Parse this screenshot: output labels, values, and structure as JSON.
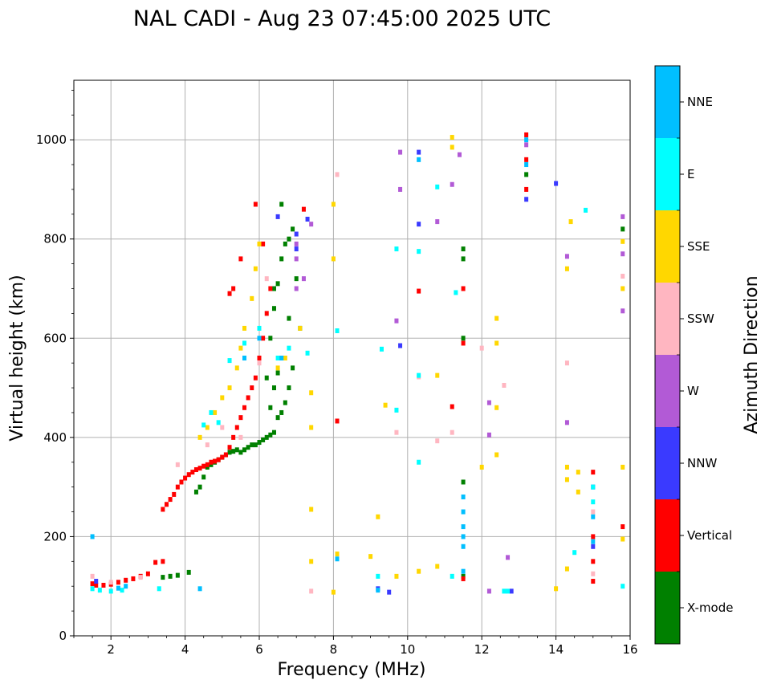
{
  "chart_data": {
    "type": "scatter",
    "title": "NAL CADI - Aug 23 07:45:00 2025 UTC",
    "xlabel": "Frequency (MHz)",
    "ylabel": "Virtual height (km)",
    "xlim": [
      1,
      16
    ],
    "ylim": [
      0,
      1120
    ],
    "xticks": [
      2,
      4,
      6,
      8,
      10,
      12,
      14,
      16
    ],
    "yticks": [
      0,
      200,
      400,
      600,
      800,
      1000
    ],
    "grid": true,
    "colorbar": {
      "label": "Azimuth Direction",
      "categories": [
        {
          "name": "X-mode",
          "color": "#008000"
        },
        {
          "name": "Vertical",
          "color": "#ff0000"
        },
        {
          "name": "NNW",
          "color": "#3a3aff"
        },
        {
          "name": "W",
          "color": "#b25ad6"
        },
        {
          "name": "SSW",
          "color": "#ffb6c1"
        },
        {
          "name": "SSE",
          "color": "#ffd700"
        },
        {
          "name": "E",
          "color": "#00ffff"
        },
        {
          "name": "NNE",
          "color": "#00bfff"
        }
      ]
    },
    "series": [
      {
        "name": "X-mode",
        "points": [
          [
            3.4,
            118
          ],
          [
            3.6,
            120
          ],
          [
            3.8,
            122
          ],
          [
            4.1,
            128
          ],
          [
            4.3,
            290
          ],
          [
            4.4,
            300
          ],
          [
            4.5,
            320
          ],
          [
            4.6,
            340
          ],
          [
            4.7,
            345
          ],
          [
            4.8,
            350
          ],
          [
            4.9,
            355
          ],
          [
            5.0,
            360
          ],
          [
            5.1,
            365
          ],
          [
            5.2,
            370
          ],
          [
            5.3,
            372
          ],
          [
            5.4,
            375
          ],
          [
            5.5,
            370
          ],
          [
            5.6,
            375
          ],
          [
            5.7,
            380
          ],
          [
            5.8,
            385
          ],
          [
            5.9,
            385
          ],
          [
            6.0,
            390
          ],
          [
            6.1,
            395
          ],
          [
            6.2,
            400
          ],
          [
            6.3,
            405
          ],
          [
            6.4,
            410
          ],
          [
            6.5,
            440
          ],
          [
            6.6,
            450
          ],
          [
            6.7,
            470
          ],
          [
            6.8,
            500
          ],
          [
            6.9,
            540
          ],
          [
            6.3,
            460
          ],
          [
            6.4,
            500
          ],
          [
            6.5,
            530
          ],
          [
            6.6,
            560
          ],
          [
            6.2,
            520
          ],
          [
            6.3,
            600
          ],
          [
            6.4,
            700
          ],
          [
            6.5,
            710
          ],
          [
            6.6,
            760
          ],
          [
            6.7,
            790
          ],
          [
            6.8,
            800
          ],
          [
            6.9,
            820
          ],
          [
            7.0,
            720
          ],
          [
            6.4,
            660
          ],
          [
            6.8,
            640
          ],
          [
            7.1,
            620
          ],
          [
            11.5,
            120
          ],
          [
            11.5,
            310
          ],
          [
            11.5,
            600
          ],
          [
            11.5,
            760
          ],
          [
            11.5,
            780
          ],
          [
            13.2,
            930
          ],
          [
            15.8,
            820
          ],
          [
            6.6,
            870
          ]
        ]
      },
      {
        "name": "Vertical",
        "points": [
          [
            1.5,
            105
          ],
          [
            1.6,
            102
          ],
          [
            1.8,
            102
          ],
          [
            2.0,
            104
          ],
          [
            2.2,
            108
          ],
          [
            2.4,
            112
          ],
          [
            2.6,
            115
          ],
          [
            2.8,
            120
          ],
          [
            3.0,
            125
          ],
          [
            3.2,
            148
          ],
          [
            3.4,
            150
          ],
          [
            3.4,
            255
          ],
          [
            3.5,
            265
          ],
          [
            3.6,
            275
          ],
          [
            3.7,
            285
          ],
          [
            3.8,
            300
          ],
          [
            3.9,
            310
          ],
          [
            4.0,
            318
          ],
          [
            4.1,
            325
          ],
          [
            4.2,
            330
          ],
          [
            4.3,
            335
          ],
          [
            4.4,
            338
          ],
          [
            4.5,
            342
          ],
          [
            4.6,
            345
          ],
          [
            4.7,
            350
          ],
          [
            4.8,
            352
          ],
          [
            4.9,
            355
          ],
          [
            5.0,
            360
          ],
          [
            5.1,
            365
          ],
          [
            5.2,
            380
          ],
          [
            5.3,
            400
          ],
          [
            5.4,
            420
          ],
          [
            5.5,
            440
          ],
          [
            5.6,
            460
          ],
          [
            5.7,
            480
          ],
          [
            5.8,
            500
          ],
          [
            5.9,
            520
          ],
          [
            6.0,
            560
          ],
          [
            6.1,
            600
          ],
          [
            6.2,
            650
          ],
          [
            6.3,
            700
          ],
          [
            6.1,
            790
          ],
          [
            5.9,
            870
          ],
          [
            5.5,
            760
          ],
          [
            5.3,
            700
          ],
          [
            5.2,
            690
          ],
          [
            7.2,
            860
          ],
          [
            11.5,
            115
          ],
          [
            11.5,
            590
          ],
          [
            11.5,
            700
          ],
          [
            13.2,
            1010
          ],
          [
            13.2,
            960
          ],
          [
            13.2,
            900
          ],
          [
            15.0,
            330
          ],
          [
            15.0,
            200
          ],
          [
            15.0,
            150
          ],
          [
            15.0,
            110
          ],
          [
            15.8,
            220
          ],
          [
            10.3,
            695
          ],
          [
            11.2,
            462
          ],
          [
            8.1,
            433
          ]
        ]
      },
      {
        "name": "NNW",
        "points": [
          [
            1.6,
            110
          ],
          [
            9.2,
            95
          ],
          [
            9.5,
            88
          ],
          [
            10.3,
            975
          ],
          [
            10.3,
            830
          ],
          [
            12.8,
            90
          ],
          [
            14.0,
            912
          ],
          [
            15.0,
            180
          ],
          [
            7.0,
            810
          ],
          [
            7.0,
            780
          ],
          [
            6.5,
            845
          ],
          [
            7.3,
            840
          ],
          [
            9.8,
            585
          ],
          [
            13.2,
            880
          ],
          [
            15.0,
            300
          ]
        ]
      },
      {
        "name": "W",
        "points": [
          [
            7.0,
            790
          ],
          [
            7.0,
            760
          ],
          [
            7.0,
            700
          ],
          [
            7.2,
            720
          ],
          [
            7.4,
            830
          ],
          [
            9.8,
            975
          ],
          [
            9.8,
            900
          ],
          [
            10.8,
            835
          ],
          [
            11.2,
            910
          ],
          [
            11.4,
            970
          ],
          [
            12.2,
            470
          ],
          [
            12.2,
            405
          ],
          [
            12.7,
            158
          ],
          [
            13.2,
            990
          ],
          [
            14.3,
            765
          ],
          [
            14.3,
            430
          ],
          [
            15.8,
            845
          ],
          [
            15.8,
            770
          ],
          [
            15.8,
            655
          ],
          [
            12.2,
            90
          ],
          [
            9.7,
            635
          ]
        ]
      },
      {
        "name": "SSW",
        "points": [
          [
            1.5,
            120
          ],
          [
            2.0,
            108
          ],
          [
            2.8,
            118
          ],
          [
            3.8,
            345
          ],
          [
            4.6,
            385
          ],
          [
            5.0,
            420
          ],
          [
            5.5,
            400
          ],
          [
            6.0,
            550
          ],
          [
            6.2,
            720
          ],
          [
            8.1,
            930
          ],
          [
            9.7,
            410
          ],
          [
            10.3,
            522
          ],
          [
            10.8,
            393
          ],
          [
            11.2,
            410
          ],
          [
            12.0,
            580
          ],
          [
            12.6,
            505
          ],
          [
            14.3,
            550
          ],
          [
            15.0,
            250
          ],
          [
            15.0,
            125
          ],
          [
            15.8,
            725
          ],
          [
            7.4,
            90
          ]
        ]
      },
      {
        "name": "SSE",
        "points": [
          [
            4.4,
            400
          ],
          [
            4.6,
            420
          ],
          [
            4.8,
            450
          ],
          [
            5.0,
            480
          ],
          [
            5.2,
            500
          ],
          [
            5.4,
            540
          ],
          [
            5.5,
            580
          ],
          [
            5.6,
            620
          ],
          [
            5.8,
            680
          ],
          [
            5.9,
            740
          ],
          [
            6.0,
            790
          ],
          [
            6.5,
            540
          ],
          [
            6.7,
            560
          ],
          [
            7.1,
            620
          ],
          [
            7.4,
            490
          ],
          [
            7.4,
            420
          ],
          [
            7.4,
            255
          ],
          [
            7.4,
            150
          ],
          [
            8.0,
            760
          ],
          [
            8.0,
            870
          ],
          [
            8.1,
            165
          ],
          [
            9.0,
            160
          ],
          [
            9.2,
            240
          ],
          [
            9.4,
            465
          ],
          [
            9.7,
            120
          ],
          [
            10.3,
            130
          ],
          [
            10.8,
            140
          ],
          [
            10.8,
            525
          ],
          [
            11.2,
            1005
          ],
          [
            11.2,
            985
          ],
          [
            12.0,
            340
          ],
          [
            12.4,
            460
          ],
          [
            12.4,
            365
          ],
          [
            12.4,
            590
          ],
          [
            12.4,
            640
          ],
          [
            14.3,
            340
          ],
          [
            14.3,
            315
          ],
          [
            14.3,
            135
          ],
          [
            14.6,
            330
          ],
          [
            14.6,
            290
          ],
          [
            15.8,
            795
          ],
          [
            15.8,
            700
          ],
          [
            15.8,
            340
          ],
          [
            15.8,
            195
          ],
          [
            14.3,
            740
          ],
          [
            14.4,
            835
          ],
          [
            14.0,
            95
          ],
          [
            8.0,
            88
          ]
        ]
      },
      {
        "name": "E",
        "points": [
          [
            1.5,
            95
          ],
          [
            1.7,
            92
          ],
          [
            2.0,
            90
          ],
          [
            2.3,
            92
          ],
          [
            3.3,
            95
          ],
          [
            4.5,
            425
          ],
          [
            4.7,
            450
          ],
          [
            4.9,
            430
          ],
          [
            5.2,
            555
          ],
          [
            5.6,
            590
          ],
          [
            6.0,
            620
          ],
          [
            6.5,
            560
          ],
          [
            6.8,
            580
          ],
          [
            7.3,
            570
          ],
          [
            8.1,
            615
          ],
          [
            9.2,
            120
          ],
          [
            9.3,
            578
          ],
          [
            9.7,
            455
          ],
          [
            9.7,
            780
          ],
          [
            10.3,
            775
          ],
          [
            10.3,
            525
          ],
          [
            10.3,
            350
          ],
          [
            10.8,
            905
          ],
          [
            11.2,
            120
          ],
          [
            11.3,
            692
          ],
          [
            12.6,
            90
          ],
          [
            12.7,
            90
          ],
          [
            14.5,
            168
          ],
          [
            14.8,
            858
          ],
          [
            15.0,
            270
          ],
          [
            15.0,
            300
          ],
          [
            15.8,
            100
          ]
        ]
      },
      {
        "name": "NNE",
        "points": [
          [
            1.5,
            200
          ],
          [
            2.2,
            96
          ],
          [
            2.4,
            100
          ],
          [
            4.4,
            95
          ],
          [
            5.6,
            560
          ],
          [
            6.0,
            600
          ],
          [
            6.6,
            560
          ],
          [
            8.1,
            155
          ],
          [
            9.2,
            92
          ],
          [
            10.3,
            960
          ],
          [
            11.5,
            130
          ],
          [
            11.5,
            180
          ],
          [
            11.5,
            200
          ],
          [
            11.5,
            220
          ],
          [
            11.5,
            250
          ],
          [
            11.5,
            280
          ],
          [
            13.2,
            1000
          ],
          [
            13.2,
            950
          ],
          [
            15.0,
            240
          ],
          [
            15.0,
            190
          ]
        ]
      }
    ]
  }
}
